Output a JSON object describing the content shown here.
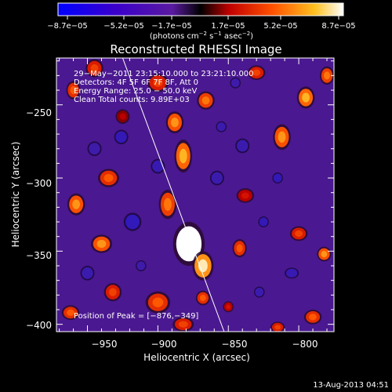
{
  "footer": {
    "timestamp": "13-Aug-2013 04:51"
  },
  "chart_data": {
    "type": "heatmap",
    "title": "Reconstructed RHESSI Image",
    "xlabel": "Heliocentric X (arcsec)",
    "ylabel": "Heliocentric Y (arcsec)",
    "xlim": [
      -972,
      -775
    ],
    "ylim": [
      -405,
      -218
    ],
    "xticks": [
      -950,
      -900,
      -850,
      -800
    ],
    "xtick_labels": [
      "−950",
      "−900",
      "−850",
      "−800"
    ],
    "yticks": [
      -400,
      -350,
      -300,
      -250
    ],
    "ytick_labels": [
      "−400",
      "−350",
      "−300",
      "−250"
    ],
    "colorbar": {
      "ticks": [
        "−8.7e−05",
        "−5.2e−05",
        "−1.7e−05",
        "1.7e−05",
        "5.2e−05",
        "8.7e−05"
      ],
      "unit_base": "(photons cm",
      "unit_exp1": "−2",
      "unit_mid": " s",
      "unit_exp2": "−1",
      "unit_tail": " asec",
      "unit_exp3": "−2",
      "unit_close": ")",
      "range": [
        -8.7e-05,
        8.7e-05
      ]
    },
    "annotations": [
      "29−May−2011 23:15:10.000 to 23:21:10.000",
      "Detectors: 4F 5F 6F 7F 8F, Att 0",
      "Energy Range: 25.0 − 50.0 keV",
      "Clean     Total counts: 9.89E+03"
    ],
    "peak_label": "Position of Peak = [−876,−349]",
    "peak": [
      -876,
      -349
    ],
    "limb_line": [
      [
        -925,
        -218
      ],
      [
        -853,
        -405
      ]
    ],
    "blobs": [
      {
        "x": -878,
        "y": -345,
        "value": 8.7e-05,
        "sx": 9,
        "sy": 12
      },
      {
        "x": -868,
        "y": -360,
        "value": 6e-05,
        "sx": 6,
        "sy": 8
      },
      {
        "x": -893,
        "y": -318,
        "value": 4e-05,
        "sx": 5,
        "sy": 8
      },
      {
        "x": -882,
        "y": -285,
        "value": 5e-05,
        "sx": 5,
        "sy": 9
      },
      {
        "x": -888,
        "y": -262,
        "value": 4.5e-05,
        "sx": 5,
        "sy": 6
      },
      {
        "x": -866,
        "y": -247,
        "value": 4e-05,
        "sx": 5,
        "sy": 5
      },
      {
        "x": -900,
        "y": -235,
        "value": 3e-05,
        "sx": 6,
        "sy": 5
      },
      {
        "x": -945,
        "y": -225,
        "value": 3e-05,
        "sx": 5,
        "sy": 5
      },
      {
        "x": -960,
        "y": -240,
        "value": 3.5e-05,
        "sx": 4,
        "sy": 5
      },
      {
        "x": -935,
        "y": -300,
        "value": 3.5e-05,
        "sx": 6,
        "sy": 5
      },
      {
        "x": -958,
        "y": -318,
        "value": 4.5e-05,
        "sx": 5,
        "sy": 6
      },
      {
        "x": -940,
        "y": -345,
        "value": 4.5e-05,
        "sx": 6,
        "sy": 5
      },
      {
        "x": -932,
        "y": -378,
        "value": 3e-05,
        "sx": 5,
        "sy": 5
      },
      {
        "x": -962,
        "y": -392,
        "value": 3.5e-05,
        "sx": 5,
        "sy": 4
      },
      {
        "x": -900,
        "y": -385,
        "value": 3.5e-05,
        "sx": 7,
        "sy": 6
      },
      {
        "x": -882,
        "y": -400,
        "value": 3e-05,
        "sx": 6,
        "sy": 4
      },
      {
        "x": -868,
        "y": -382,
        "value": 3.5e-05,
        "sx": 4,
        "sy": 4
      },
      {
        "x": -842,
        "y": -348,
        "value": 3.5e-05,
        "sx": 4,
        "sy": 5
      },
      {
        "x": -838,
        "y": -312,
        "value": 2e-05,
        "sx": 5,
        "sy": 4
      },
      {
        "x": -812,
        "y": -272,
        "value": 4.5e-05,
        "sx": 5,
        "sy": 7
      },
      {
        "x": -795,
        "y": -245,
        "value": 5e-05,
        "sx": 5,
        "sy": 6
      },
      {
        "x": -830,
        "y": -228,
        "value": 3e-05,
        "sx": 5,
        "sy": 4
      },
      {
        "x": -780,
        "y": -230,
        "value": 4e-05,
        "sx": 4,
        "sy": 5
      },
      {
        "x": -800,
        "y": -338,
        "value": 3e-05,
        "sx": 5,
        "sy": 4
      },
      {
        "x": -782,
        "y": -352,
        "value": 4.5e-05,
        "sx": 4,
        "sy": 4
      },
      {
        "x": -790,
        "y": -395,
        "value": 3.5e-05,
        "sx": 5,
        "sy": 4
      },
      {
        "x": -815,
        "y": -402,
        "value": 3e-05,
        "sx": 4,
        "sy": 3
      },
      {
        "x": -850,
        "y": -388,
        "value": 2e-05,
        "sx": 3,
        "sy": 3
      },
      {
        "x": -925,
        "y": -258,
        "value": 1.5e-05,
        "sx": 4,
        "sy": 4
      },
      {
        "x": -918,
        "y": -330,
        "value": -4.5e-05,
        "sx": 5,
        "sy": 5
      },
      {
        "x": -926,
        "y": -272,
        "value": -4e-05,
        "sx": 4,
        "sy": 4
      },
      {
        "x": -900,
        "y": -292,
        "value": -3.5e-05,
        "sx": 4,
        "sy": 4
      },
      {
        "x": -858,
        "y": -300,
        "value": -3e-05,
        "sx": 4,
        "sy": 4
      },
      {
        "x": -840,
        "y": -278,
        "value": -3e-05,
        "sx": 4,
        "sy": 4
      },
      {
        "x": -825,
        "y": -330,
        "value": -4e-05,
        "sx": 3,
        "sy": 3
      },
      {
        "x": -815,
        "y": -300,
        "value": -4e-05,
        "sx": 3,
        "sy": 3
      },
      {
        "x": -805,
        "y": -365,
        "value": -3.5e-05,
        "sx": 4,
        "sy": 3
      },
      {
        "x": -828,
        "y": -378,
        "value": -3e-05,
        "sx": 3,
        "sy": 3
      },
      {
        "x": -855,
        "y": -265,
        "value": -3e-05,
        "sx": 3,
        "sy": 3
      },
      {
        "x": -950,
        "y": -365,
        "value": -3e-05,
        "sx": 4,
        "sy": 4
      },
      {
        "x": -945,
        "y": -280,
        "value": -2.5e-05,
        "sx": 4,
        "sy": 4
      },
      {
        "x": -912,
        "y": -360,
        "value": -2.5e-05,
        "sx": 3,
        "sy": 3
      },
      {
        "x": -845,
        "y": -235,
        "value": -2.5e-05,
        "sx": 3,
        "sy": 3
      }
    ]
  }
}
